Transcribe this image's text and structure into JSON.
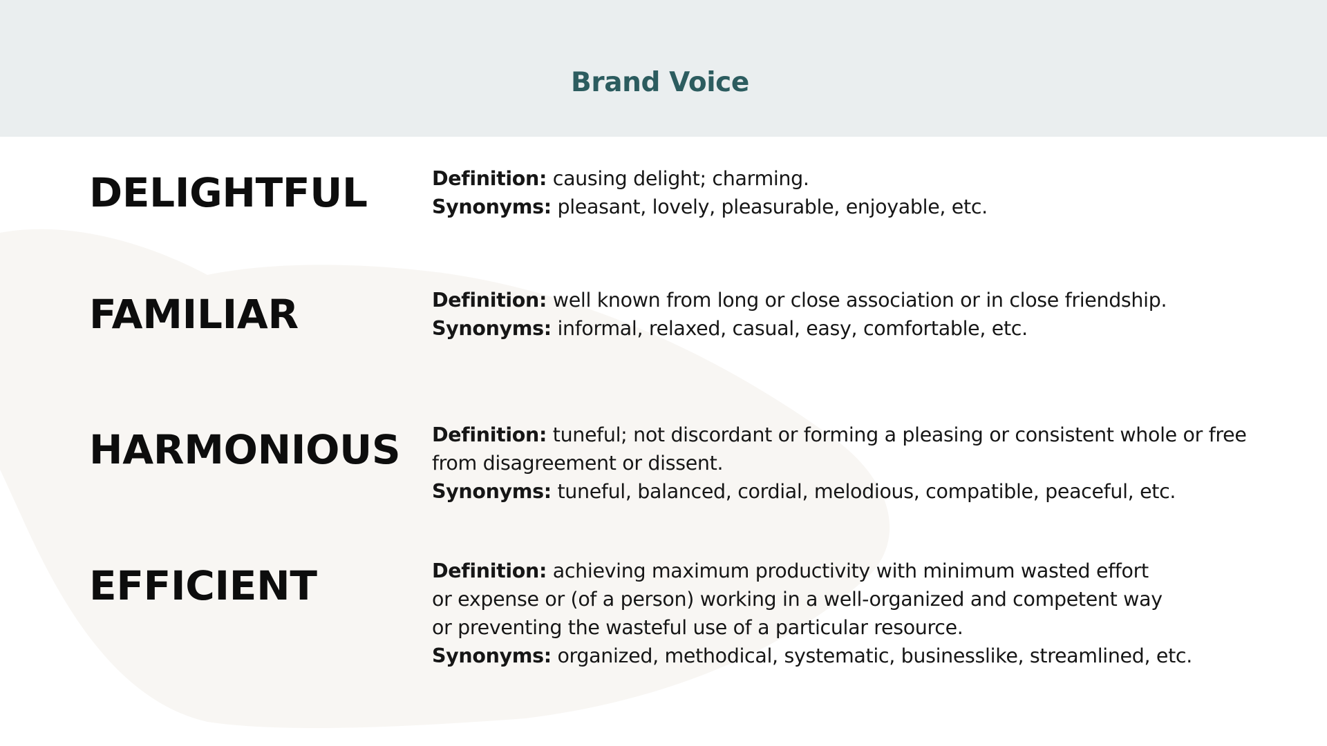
{
  "header": {
    "title": "Brand Voice",
    "background": "#eaeeef",
    "title_color": "#2c5c5f"
  },
  "colors": {
    "blob": "#f8f6f3",
    "text": "#111111"
  },
  "definition_label": "Definition:",
  "synonyms_label": "Synonyms:",
  "words": [
    {
      "term": "DELIGHTFUL",
      "definition_lines": [
        "causing delight; charming."
      ],
      "synonyms": "pleasant, lovely, pleasurable, enjoyable, etc."
    },
    {
      "term": "FAMILIAR",
      "definition_lines": [
        "well known from long or close association or in close friendship."
      ],
      "synonyms": "informal, relaxed, casual, easy, comfortable, etc."
    },
    {
      "term": "HARMONIOUS",
      "definition_lines": [
        "tuneful; not discordant or forming a pleasing or consistent whole or free",
        "from disagreement or dissent."
      ],
      "synonyms": "tuneful, balanced, cordial, melodious, compatible, peaceful, etc."
    },
    {
      "term": "EFFICIENT",
      "definition_lines": [
        "achieving maximum productivity with minimum wasted effort",
        "or expense or (of a person) working in a well-organized and competent way",
        "or preventing the wasteful use of a particular resource."
      ],
      "synonyms": "organized, methodical, systematic, businesslike, streamlined, etc."
    }
  ]
}
